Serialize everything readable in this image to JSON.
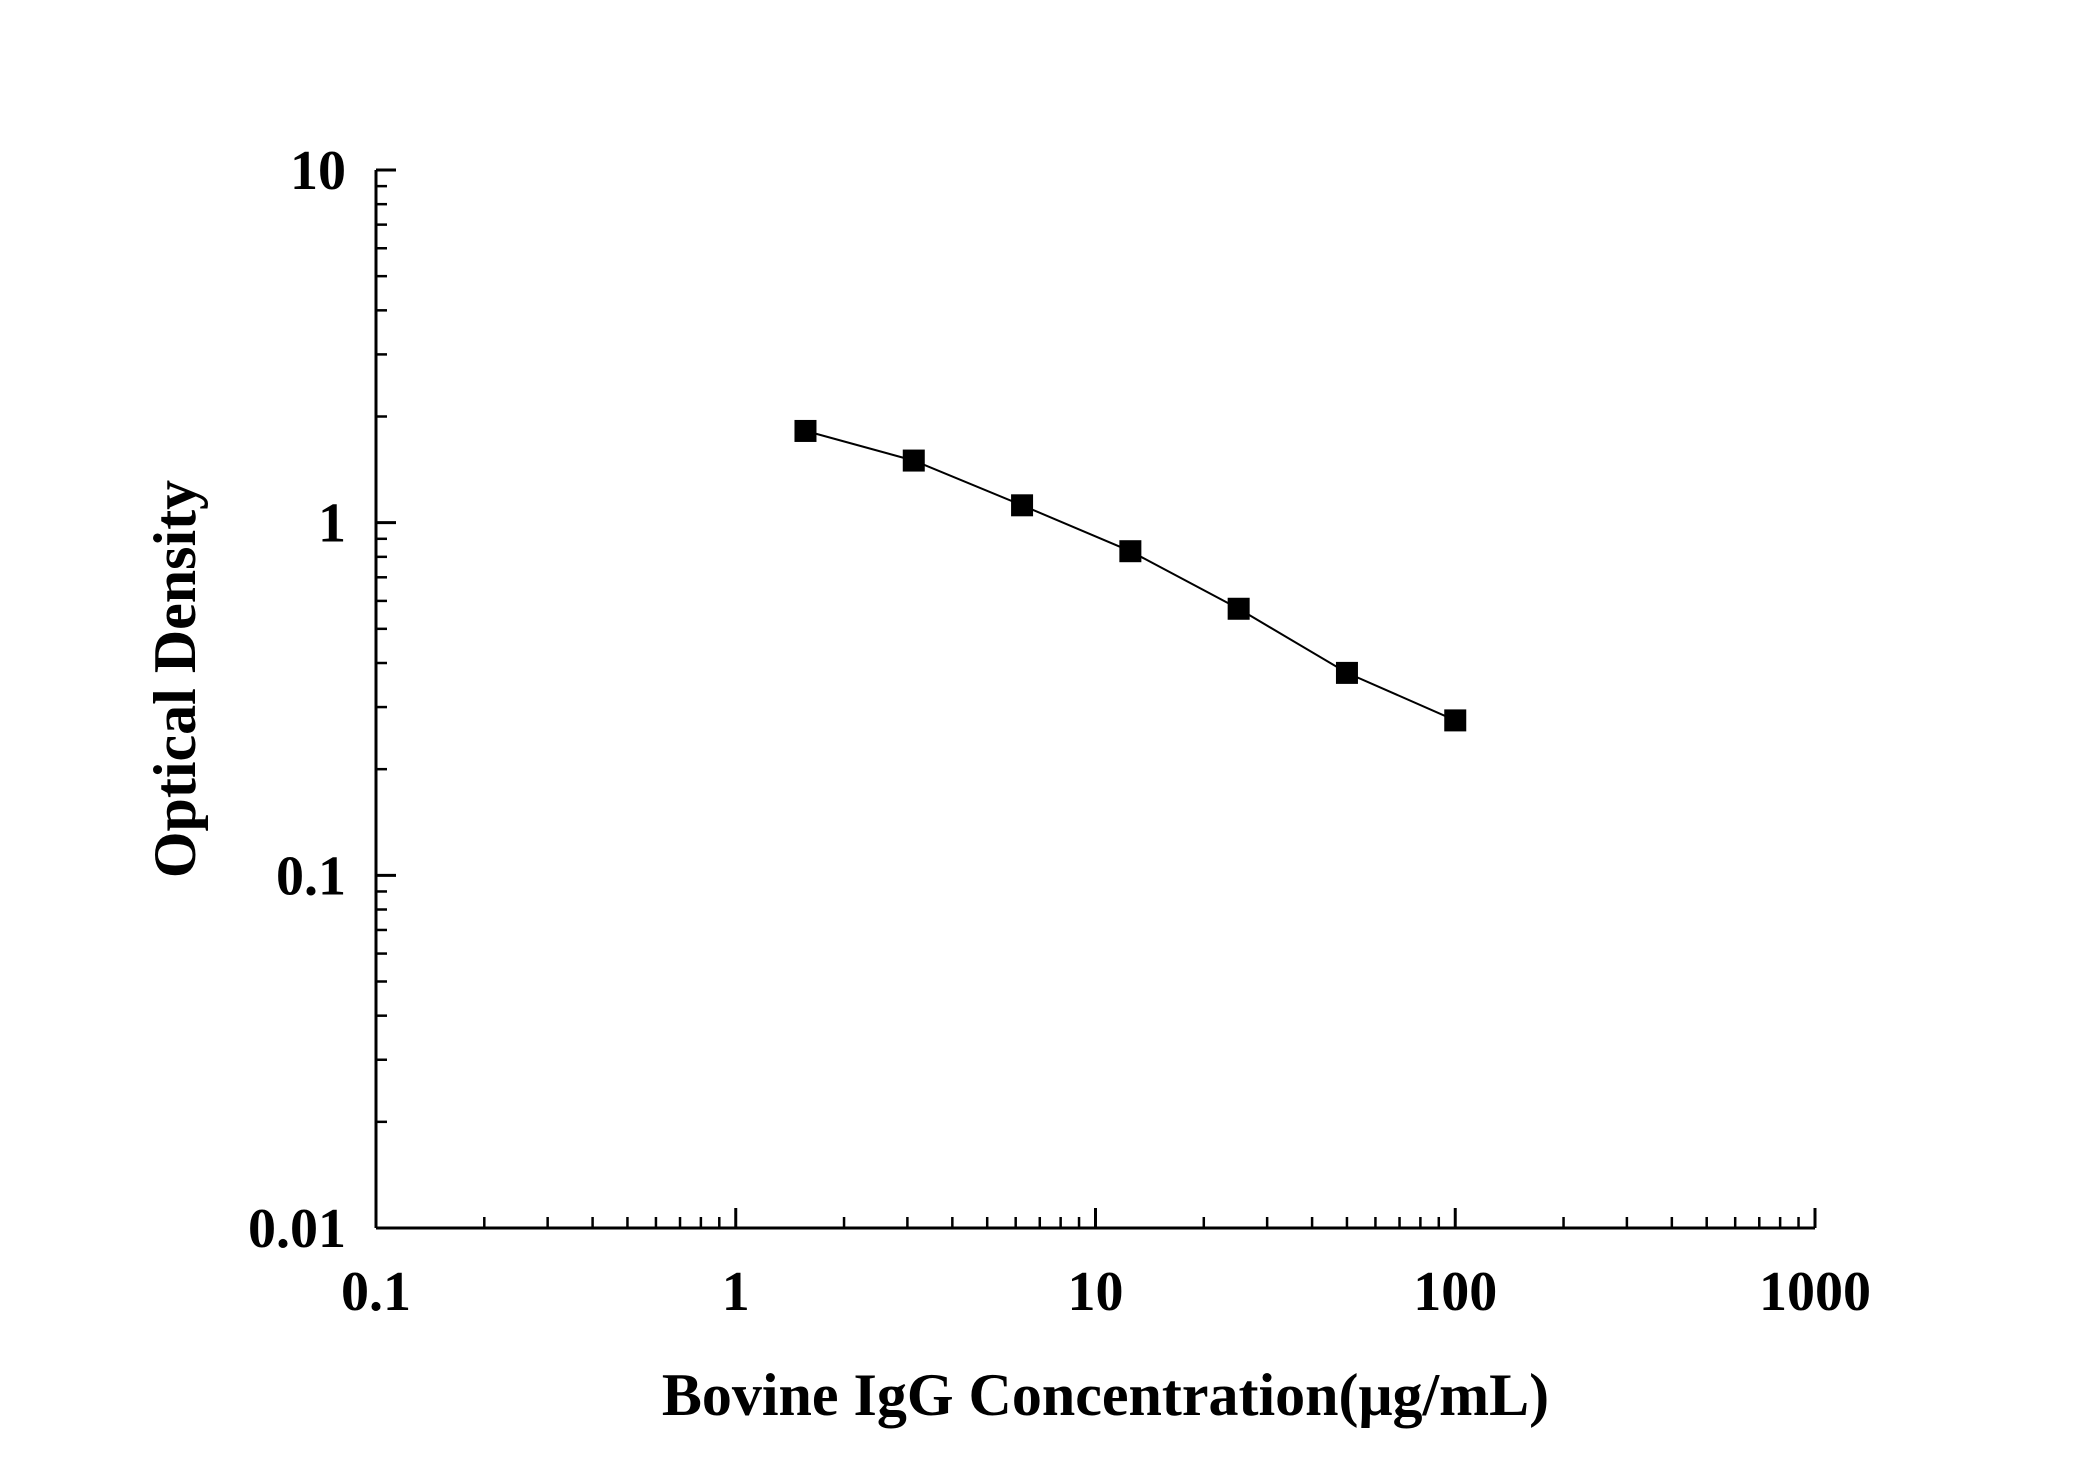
{
  "chart_data": {
    "type": "line",
    "title": "",
    "xlabel": "Bovine IgG Concentration(μg/mL)",
    "ylabel": "Optical Density",
    "xscale": "log",
    "yscale": "log",
    "xlim": [
      0.1,
      1000
    ],
    "ylim": [
      0.01,
      10
    ],
    "x_ticks": [
      "0.1",
      "1",
      "10",
      "100",
      "1000"
    ],
    "y_ticks": [
      "0.01",
      "0.1",
      "1",
      "10"
    ],
    "grid": false,
    "legend": "none",
    "marker": "square",
    "colors": {
      "series": "#000000",
      "axes": "#000000"
    },
    "series": [
      {
        "x": [
          1.5625,
          3.125,
          6.25,
          12.5,
          25,
          50,
          100
        ],
        "y": [
          1.82,
          1.5,
          1.12,
          0.83,
          0.57,
          0.375,
          0.275
        ]
      }
    ]
  }
}
